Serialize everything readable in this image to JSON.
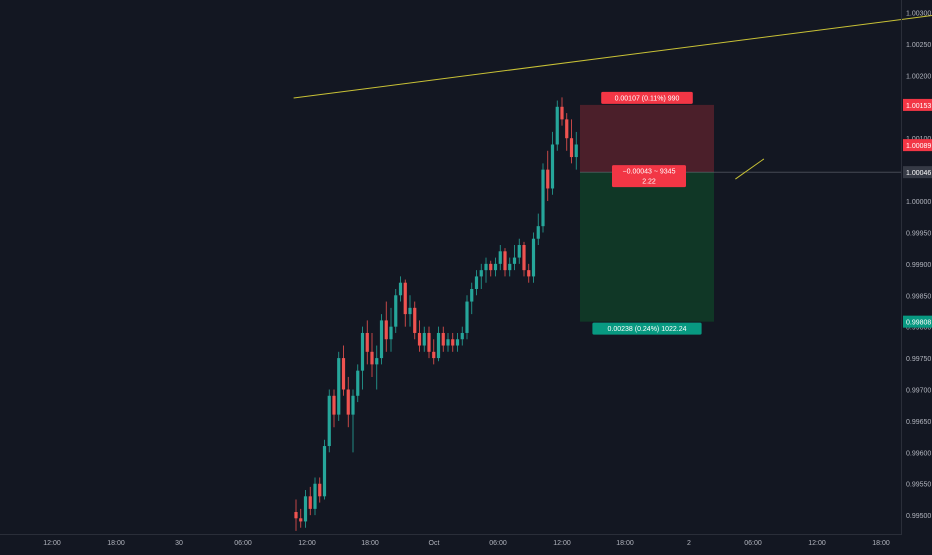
{
  "colors": {
    "background": "#131722",
    "axis_text": "#b2b5be",
    "up": "#26a69a",
    "down": "#ef5350",
    "trendline": "#c9c236",
    "stop_zone": "rgba(242,54,69,0.25)",
    "target_zone": "rgba(8,153,50,0.25)",
    "price_badge": "#363a45",
    "stop_badge": "#f23645",
    "target_badge": "#089981"
  },
  "chart_data": {
    "type": "candlestick",
    "x_ticks": [
      "12:00",
      "18:00",
      "30",
      "06:00",
      "12:00",
      "18:00",
      "Oct",
      "06:00",
      "12:00",
      "18:00",
      "2",
      "06:00",
      "12:00",
      "18:00"
    ],
    "y_ticks": [
      "1.00300",
      "1.00250",
      "1.00200",
      "1.00150",
      "1.00100",
      "1.00050",
      "1.00000",
      "0.99950",
      "0.99900",
      "0.99850",
      "0.99800",
      "0.99750",
      "0.99700",
      "0.99650",
      "0.99600",
      "0.99550",
      "0.99500"
    ],
    "ylim": [
      0.9947,
      1.0032
    ],
    "price_labels": [
      {
        "text": "1.00153",
        "value": 1.00153,
        "style": "stop"
      },
      {
        "text": "1.00089",
        "value": 1.00089,
        "style": "mid"
      },
      {
        "text": "1.00046",
        "value": 1.00046,
        "style": "current"
      },
      {
        "text": "0.99808",
        "value": 0.99808,
        "style": "target"
      }
    ],
    "position": {
      "entry": 1.00046,
      "stop": 1.00153,
      "target": 0.99808,
      "stop_label": "0.00107 (0.11%) 990",
      "entry_label_line1": "−0.00043 ~ 9345",
      "entry_label_line2": "2.22",
      "target_label": "0.00238 (0.24%) 1022.24"
    },
    "trendlines": [
      {
        "from": [
          -0.5,
          1.00164
        ],
        "to": [
          150,
          1.00311
        ]
      },
      {
        "from": [
          92.5,
          1.00035
        ],
        "to": [
          98.5,
          1.00067
        ]
      }
    ],
    "candles": [
      [
        0.99505,
        0.99525,
        0.99475,
        0.99495
      ],
      [
        0.99495,
        0.9951,
        0.9948,
        0.9949
      ],
      [
        0.9949,
        0.9954,
        0.9948,
        0.9953
      ],
      [
        0.9953,
        0.99545,
        0.995,
        0.9951
      ],
      [
        0.9951,
        0.9956,
        0.995,
        0.9955
      ],
      [
        0.9955,
        0.9956,
        0.9952,
        0.9953
      ],
      [
        0.9953,
        0.9962,
        0.99525,
        0.9961
      ],
      [
        0.9961,
        0.997,
        0.996,
        0.9969
      ],
      [
        0.9969,
        0.997,
        0.9964,
        0.9966
      ],
      [
        0.9966,
        0.9976,
        0.9965,
        0.9975
      ],
      [
        0.9975,
        0.9977,
        0.9969,
        0.997
      ],
      [
        0.997,
        0.9972,
        0.9964,
        0.9966
      ],
      [
        0.9966,
        0.997,
        0.996,
        0.9969
      ],
      [
        0.9969,
        0.9974,
        0.9968,
        0.9973
      ],
      [
        0.9973,
        0.998,
        0.997,
        0.9979
      ],
      [
        0.9979,
        0.9981,
        0.9974,
        0.9976
      ],
      [
        0.9976,
        0.9979,
        0.9972,
        0.9974
      ],
      [
        0.9974,
        0.9977,
        0.997,
        0.9975
      ],
      [
        0.9975,
        0.9982,
        0.9974,
        0.9981
      ],
      [
        0.9981,
        0.9984,
        0.9976,
        0.9978
      ],
      [
        0.9978,
        0.9983,
        0.9976,
        0.998
      ],
      [
        0.998,
        0.9986,
        0.9979,
        0.9985
      ],
      [
        0.9985,
        0.9988,
        0.9984,
        0.9987
      ],
      [
        0.9987,
        0.99875,
        0.998,
        0.9982
      ],
      [
        0.9982,
        0.9985,
        0.998,
        0.9983
      ],
      [
        0.9983,
        0.9984,
        0.9978,
        0.9979
      ],
      [
        0.9979,
        0.9981,
        0.9976,
        0.9977
      ],
      [
        0.9977,
        0.998,
        0.9976,
        0.9979
      ],
      [
        0.9979,
        0.998,
        0.9975,
        0.9976
      ],
      [
        0.9976,
        0.9978,
        0.9974,
        0.9975
      ],
      [
        0.9975,
        0.998,
        0.99745,
        0.9979
      ],
      [
        0.9979,
        0.998,
        0.9976,
        0.9977
      ],
      [
        0.9977,
        0.9979,
        0.9976,
        0.9978
      ],
      [
        0.9978,
        0.9979,
        0.9976,
        0.9977
      ],
      [
        0.9977,
        0.9979,
        0.9976,
        0.9978
      ],
      [
        0.9978,
        0.998,
        0.9977,
        0.9979
      ],
      [
        0.9979,
        0.9985,
        0.9978,
        0.9984
      ],
      [
        0.9984,
        0.9987,
        0.9982,
        0.9986
      ],
      [
        0.9986,
        0.9989,
        0.9985,
        0.9988
      ],
      [
        0.9988,
        0.999,
        0.9986,
        0.9989
      ],
      [
        0.9989,
        0.9991,
        0.9987,
        0.999
      ],
      [
        0.999,
        0.99905,
        0.9988,
        0.9989
      ],
      [
        0.9989,
        0.9991,
        0.9988,
        0.999
      ],
      [
        0.999,
        0.9993,
        0.9989,
        0.9992
      ],
      [
        0.9992,
        0.99925,
        0.9988,
        0.9989
      ],
      [
        0.9989,
        0.9991,
        0.9988,
        0.999
      ],
      [
        0.999,
        0.9993,
        0.9989,
        0.9991
      ],
      [
        0.9991,
        0.9994,
        0.999,
        0.9993
      ],
      [
        0.9993,
        0.99935,
        0.9988,
        0.9989
      ],
      [
        0.9989,
        0.999,
        0.9987,
        0.9988
      ],
      [
        0.9988,
        0.9995,
        0.9987,
        0.9994
      ],
      [
        0.9994,
        0.9998,
        0.9993,
        0.9996
      ],
      [
        0.9996,
        1.0006,
        0.9995,
        1.0005
      ],
      [
        1.0005,
        1.0008,
        1.0,
        1.0002
      ],
      [
        1.0002,
        1.0011,
        1.0001,
        1.0009
      ],
      [
        1.0009,
        1.0016,
        1.0008,
        1.0015
      ],
      [
        1.0015,
        1.00165,
        1.0012,
        1.0013
      ],
      [
        1.0013,
        1.0014,
        1.0008,
        1.001
      ],
      [
        1.001,
        1.0013,
        1.0006,
        1.0007
      ],
      [
        1.0007,
        1.0011,
        1.0005,
        1.0009
      ]
    ]
  }
}
